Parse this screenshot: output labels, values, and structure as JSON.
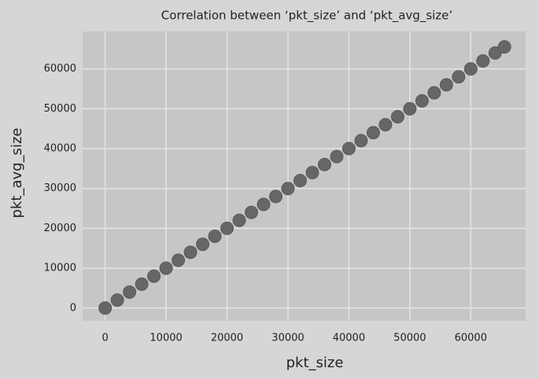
{
  "chart_data": {
    "type": "scatter",
    "title": "Correlation between ‘pkt_size’ and ‘pkt_avg_size’",
    "x_label": "pkt_size",
    "y_label": "pkt_avg_size",
    "x": [
      0,
      2000,
      4000,
      6000,
      8000,
      10000,
      12000,
      14000,
      16000,
      18000,
      20000,
      22000,
      24000,
      26000,
      28000,
      30000,
      32000,
      34000,
      36000,
      38000,
      40000,
      42000,
      44000,
      46000,
      48000,
      50000,
      52000,
      54000,
      56000,
      58000,
      60000,
      62000,
      64000,
      65535
    ],
    "y": [
      0,
      2000,
      4000,
      6000,
      8000,
      10000,
      12000,
      14000,
      16000,
      18000,
      20000,
      22000,
      24000,
      26000,
      28000,
      30000,
      32000,
      34000,
      36000,
      38000,
      40000,
      42000,
      44000,
      46000,
      48000,
      50000,
      52000,
      54000,
      56000,
      58000,
      60000,
      62000,
      64000,
      65535
    ],
    "color": "#666666",
    "xlim": [
      -3700,
      69000
    ],
    "ylim": [
      -3200,
      69400
    ],
    "xticks": [
      0,
      10000,
      20000,
      30000,
      40000,
      50000,
      60000
    ],
    "yticks": [
      0,
      10000,
      20000,
      30000,
      40000,
      50000,
      60000
    ],
    "grid": true
  }
}
